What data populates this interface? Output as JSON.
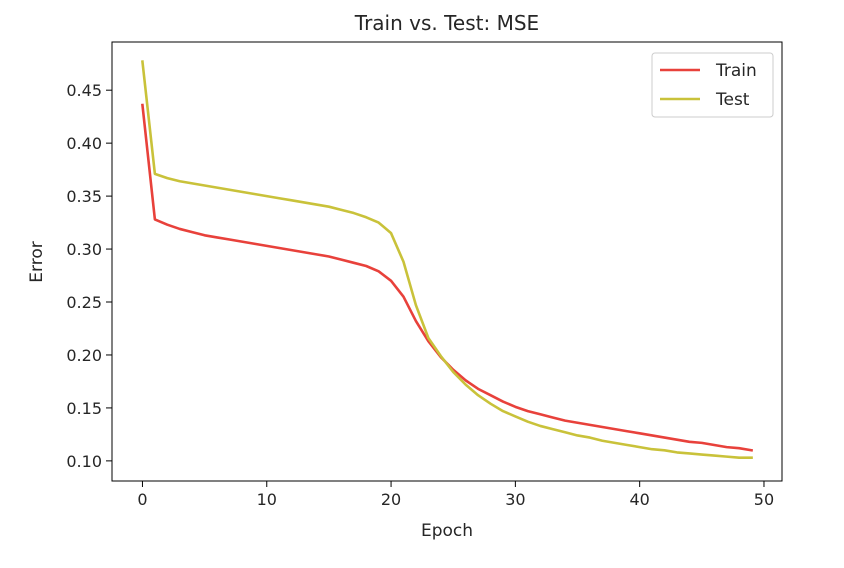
{
  "chart_data": {
    "type": "line",
    "title": "Train vs. Test: MSE",
    "xlabel": "Epoch",
    "ylabel": "Error",
    "xlim": [
      -2.45,
      51.45
    ],
    "ylim": [
      0.081,
      0.4955
    ],
    "xticks": [
      0,
      10,
      20,
      30,
      40,
      50
    ],
    "yticks": [
      0.1,
      0.15,
      0.2,
      0.25,
      0.3,
      0.35,
      0.4,
      0.45
    ],
    "grid": false,
    "legend": "top-right",
    "x": [
      0,
      1,
      2,
      3,
      4,
      5,
      6,
      7,
      8,
      9,
      10,
      11,
      12,
      13,
      14,
      15,
      16,
      17,
      18,
      19,
      20,
      21,
      22,
      23,
      24,
      25,
      26,
      27,
      28,
      29,
      30,
      31,
      32,
      33,
      34,
      35,
      36,
      37,
      38,
      39,
      40,
      41,
      42,
      43,
      44,
      45,
      46,
      47,
      48,
      49
    ],
    "series": [
      {
        "name": "Train",
        "color": "#e8413b",
        "values": [
          0.436,
          0.328,
          0.323,
          0.319,
          0.316,
          0.313,
          0.311,
          0.309,
          0.307,
          0.305,
          0.303,
          0.301,
          0.299,
          0.297,
          0.295,
          0.293,
          0.29,
          0.287,
          0.284,
          0.279,
          0.27,
          0.255,
          0.232,
          0.213,
          0.198,
          0.186,
          0.176,
          0.168,
          0.162,
          0.156,
          0.151,
          0.147,
          0.144,
          0.141,
          0.138,
          0.136,
          0.134,
          0.132,
          0.13,
          0.128,
          0.126,
          0.124,
          0.122,
          0.12,
          0.118,
          0.117,
          0.115,
          0.113,
          0.112,
          0.11
        ]
      },
      {
        "name": "Test",
        "color": "#c9c23a",
        "values": [
          0.477,
          0.371,
          0.367,
          0.364,
          0.362,
          0.36,
          0.358,
          0.356,
          0.354,
          0.352,
          0.35,
          0.348,
          0.346,
          0.344,
          0.342,
          0.34,
          0.337,
          0.334,
          0.33,
          0.325,
          0.315,
          0.288,
          0.247,
          0.216,
          0.199,
          0.184,
          0.172,
          0.162,
          0.154,
          0.147,
          0.142,
          0.137,
          0.133,
          0.13,
          0.127,
          0.124,
          0.122,
          0.119,
          0.117,
          0.115,
          0.113,
          0.111,
          0.11,
          0.108,
          0.107,
          0.106,
          0.105,
          0.104,
          0.103,
          0.103
        ]
      }
    ]
  }
}
